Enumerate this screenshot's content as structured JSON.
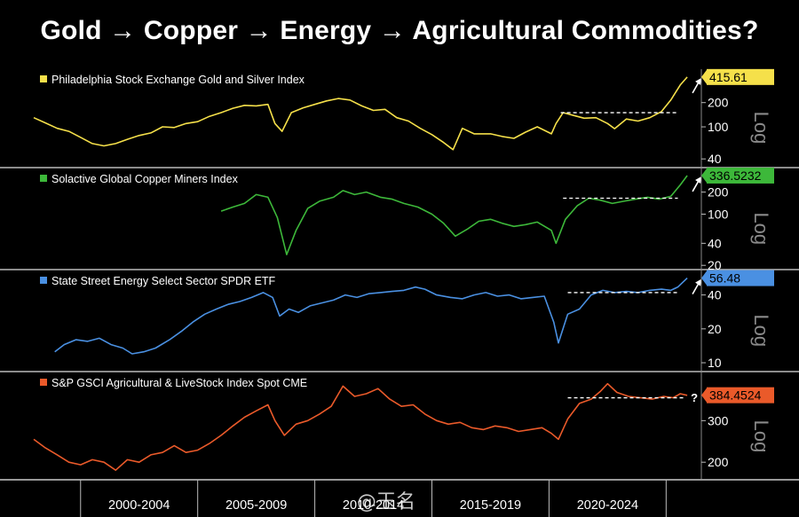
{
  "headline": "Gold → Copper → Energy → Agricultural Commodities?",
  "watermark": "@玉名",
  "chart_data": [
    {
      "type": "line",
      "title": "Philadelphia Stock Exchange Gold and Silver Index",
      "color": "#f5e04a",
      "last_value_label": "415.61",
      "last_value": 415.61,
      "scale": "log",
      "ylim": [
        32,
        520
      ],
      "yticks": [
        40,
        100,
        200
      ],
      "axis_label": "Log",
      "resistance_level": 150,
      "resistance_x": [
        2020.5,
        2025.5
      ],
      "arrow": "↗",
      "x": [
        1998,
        1998.5,
        1999,
        1999.5,
        2000,
        2000.5,
        2001,
        2001.5,
        2002,
        2002.5,
        2003,
        2003.5,
        2004,
        2004.5,
        2005,
        2005.5,
        2006,
        2006.5,
        2007,
        2007.5,
        2008,
        2008.3,
        2008.6,
        2009,
        2009.5,
        2010,
        2010.5,
        2011,
        2011.5,
        2012,
        2012.5,
        2013,
        2013.5,
        2014,
        2014.5,
        2015,
        2015.5,
        2015.9,
        2016.3,
        2016.8,
        2017.5,
        2018,
        2018.5,
        2019,
        2019.5,
        2020.1,
        2020.3,
        2020.6,
        2021,
        2021.5,
        2022,
        2022.5,
        2022.8,
        2023.3,
        2023.8,
        2024.3,
        2024.8,
        2025.2,
        2025.6,
        2025.9
      ],
      "values": [
        130,
        112,
        96,
        88,
        74,
        62,
        58,
        62,
        70,
        78,
        84,
        100,
        98,
        110,
        116,
        135,
        150,
        170,
        185,
        182,
        190,
        110,
        88,
        150,
        172,
        190,
        210,
        225,
        215,
        182,
        160,
        165,
        130,
        118,
        96,
        80,
        64,
        52,
        96,
        82,
        82,
        76,
        72,
        86,
        100,
        82,
        110,
        150,
        140,
        128,
        130,
        110,
        95,
        125,
        118,
        130,
        155,
        215,
        330,
        415
      ]
    },
    {
      "type": "line",
      "title": "Solactive Global Copper Miners Index",
      "color": "#3db83a",
      "last_value_label": "336.5232",
      "last_value": 336.5232,
      "scale": "log",
      "ylim": [
        18,
        420
      ],
      "yticks": [
        20,
        40,
        100,
        200
      ],
      "axis_label": "Log",
      "resistance_level": 165,
      "resistance_x": [
        2020.6,
        2025.5
      ],
      "arrow": "↗",
      "x": [
        2006,
        2006.5,
        2007,
        2007.5,
        2008,
        2008.4,
        2008.8,
        2009.2,
        2009.7,
        2010.2,
        2010.8,
        2011.2,
        2011.7,
        2012.2,
        2012.8,
        2013.3,
        2013.8,
        2014.4,
        2015,
        2015.5,
        2016,
        2016.5,
        2017,
        2017.5,
        2018,
        2018.5,
        2019,
        2019.5,
        2020.1,
        2020.3,
        2020.7,
        2021.2,
        2021.7,
        2022.2,
        2022.7,
        2023.2,
        2023.7,
        2024.2,
        2024.7,
        2025.2,
        2025.6,
        2025.9
      ],
      "values": [
        110,
        125,
        140,
        185,
        170,
        90,
        28,
        60,
        120,
        150,
        170,
        210,
        185,
        200,
        170,
        160,
        140,
        125,
        100,
        75,
        50,
        62,
        80,
        85,
        75,
        68,
        72,
        78,
        60,
        40,
        85,
        130,
        165,
        155,
        140,
        150,
        160,
        170,
        160,
        175,
        250,
        336
      ]
    },
    {
      "type": "line",
      "title": "State Street Energy Select Sector SPDR ETF",
      "color": "#4a90e2",
      "last_value_label": "56.48",
      "last_value": 56.48,
      "scale": "log",
      "ylim": [
        8.5,
        66
      ],
      "yticks": [
        10,
        20,
        40
      ],
      "axis_label": "Log",
      "resistance_level": 42,
      "resistance_x": [
        2020.8,
        2025.5
      ],
      "arrow": "↗",
      "x": [
        1998.9,
        1999.3,
        1999.8,
        2000.3,
        2000.8,
        2001.3,
        2001.8,
        2002.2,
        2002.7,
        2003.2,
        2003.8,
        2004.3,
        2004.8,
        2005.3,
        2005.8,
        2006.3,
        2006.8,
        2007.3,
        2007.8,
        2008.2,
        2008.5,
        2008.9,
        2009.3,
        2009.8,
        2010.3,
        2010.8,
        2011.3,
        2011.8,
        2012.3,
        2012.8,
        2013.3,
        2013.8,
        2014.3,
        2014.7,
        2015.2,
        2015.8,
        2016.3,
        2016.8,
        2017.3,
        2017.8,
        2018.3,
        2018.8,
        2019.3,
        2019.8,
        2020.2,
        2020.4,
        2020.8,
        2021.3,
        2021.8,
        2022.3,
        2022.8,
        2023.3,
        2023.8,
        2024.3,
        2024.8,
        2025.2,
        2025.5,
        2025.9
      ],
      "values": [
        12.5,
        14.5,
        16,
        15.5,
        16.5,
        14.5,
        13.5,
        12,
        12.5,
        13.5,
        16,
        19,
        23,
        27,
        30,
        33,
        35,
        38,
        42,
        38,
        26,
        30,
        28,
        32,
        34,
        36,
        40,
        38,
        41,
        42,
        43,
        44,
        47,
        45,
        40,
        38,
        37,
        40,
        42,
        39,
        40,
        37,
        38,
        39,
        23,
        15,
        27,
        30,
        40,
        44,
        42,
        43,
        42,
        44,
        45,
        44,
        47,
        56.48
      ]
    },
    {
      "type": "line",
      "title": "S&P GSCI Agricultural & LiveStock Index Spot CME",
      "color": "#ea5a2a",
      "last_value_label": "384.4524",
      "last_value": 384.4524,
      "scale": "log",
      "ylim": [
        170,
        480
      ],
      "yticks": [
        200,
        300
      ],
      "axis_label": "Log",
      "resistance_level": 375,
      "resistance_x": [
        2020.8,
        2025.8
      ],
      "arrow": "?",
      "x": [
        1998,
        1998.5,
        1999,
        1999.5,
        2000,
        2000.5,
        2001,
        2001.5,
        2002,
        2002.5,
        2003,
        2003.5,
        2004,
        2004.5,
        2005,
        2005.5,
        2006,
        2006.5,
        2007,
        2007.5,
        2008,
        2008.3,
        2008.7,
        2009.2,
        2009.7,
        2010.2,
        2010.7,
        2011.2,
        2011.7,
        2012.2,
        2012.7,
        2013.2,
        2013.7,
        2014.2,
        2014.7,
        2015.2,
        2015.7,
        2016.2,
        2016.7,
        2017.2,
        2017.7,
        2018.2,
        2018.7,
        2019.2,
        2019.7,
        2020.1,
        2020.4,
        2020.8,
        2021.3,
        2021.8,
        2022.2,
        2022.5,
        2022.9,
        2023.4,
        2023.9,
        2024.4,
        2024.9,
        2025.3,
        2025.6,
        2025.9
      ],
      "values": [
        250,
        230,
        215,
        200,
        195,
        205,
        200,
        185,
        205,
        200,
        215,
        220,
        235,
        220,
        225,
        240,
        260,
        285,
        310,
        330,
        350,
        300,
        260,
        290,
        300,
        320,
        345,
        420,
        380,
        390,
        410,
        370,
        345,
        350,
        320,
        300,
        290,
        295,
        280,
        275,
        285,
        280,
        270,
        275,
        280,
        265,
        250,
        305,
        355,
        370,
        400,
        430,
        395,
        380,
        375,
        370,
        380,
        375,
        390,
        384
      ]
    }
  ],
  "x_axis": {
    "range": [
      1998,
      2026.2
    ],
    "separators": [
      2000,
      2005,
      2010,
      2015,
      2020,
      2025
    ],
    "period_labels": [
      {
        "label": "2000-2004",
        "center": 2002.5
      },
      {
        "label": "2005-2009",
        "center": 2007.5
      },
      {
        "label": "2010-2014",
        "center": 2012.5
      },
      {
        "label": "2015-2019",
        "center": 2017.5
      },
      {
        "label": "2020-2024",
        "center": 2022.5
      }
    ]
  }
}
